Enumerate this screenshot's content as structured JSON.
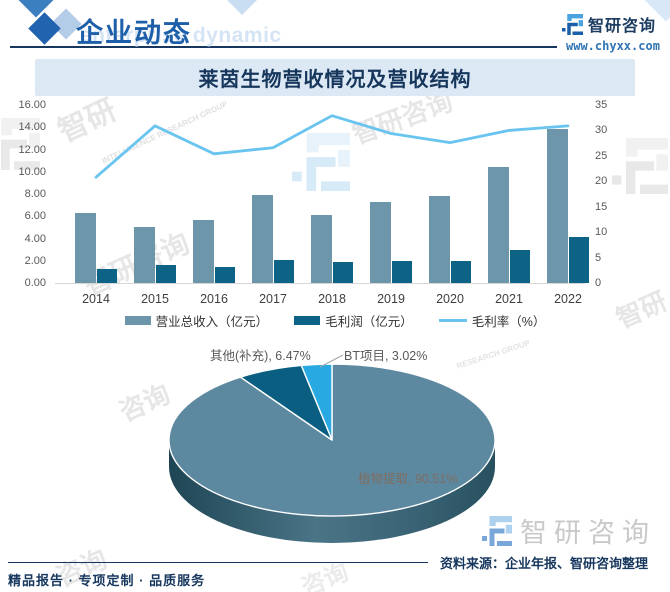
{
  "header": {
    "section_title": "企业动态",
    "section_title_en": "enterprise dynamic",
    "brand": "智研咨询",
    "website": "www.chyxx.com"
  },
  "banner": {
    "title": "莱茵生物营收情况及营收结构"
  },
  "theme": {
    "navy": "#17375e",
    "header_blue": "#1e5fa9",
    "banner_bg": "#dce9f5",
    "revenue_bar": "#6d96ab",
    "profit_bar": "#0c6386",
    "margin_line": "#69c4ef",
    "pie_plant": "#5d89a0",
    "pie_other": "#0a5e81",
    "pie_bt": "#29a9e1"
  },
  "chart_data": [
    {
      "type": "bar",
      "subtype": "combo-bar-line",
      "title": "莱茵生物营收情况及营收结构",
      "categories": [
        "2014",
        "2015",
        "2016",
        "2017",
        "2018",
        "2019",
        "2020",
        "2021",
        "2022"
      ],
      "series": [
        {
          "name": "营业总收入（亿元）",
          "type": "bar",
          "axis": "left",
          "color": "#6d96ab",
          "values": [
            6.3,
            5.0,
            5.7,
            7.9,
            6.1,
            7.3,
            7.8,
            10.4,
            13.8
          ]
        },
        {
          "name": "毛利润（亿元）",
          "type": "bar",
          "axis": "left",
          "color": "#0c6386",
          "values": [
            1.3,
            1.6,
            1.4,
            2.1,
            1.9,
            2.0,
            2.0,
            3.0,
            4.1
          ]
        },
        {
          "name": "毛利率（%）",
          "type": "line",
          "axis": "right",
          "color": "#69c4ef",
          "values": [
            20.8,
            30.9,
            25.4,
            26.6,
            32.9,
            29.4,
            27.6,
            30.0,
            30.9
          ]
        }
      ],
      "left_axis": {
        "min": 0,
        "max": 16,
        "step": 2,
        "labels": [
          "16.00",
          "14.00",
          "12.00",
          "10.00",
          "8.00",
          "6.00",
          "4.00",
          "2.00",
          "0.00"
        ]
      },
      "right_axis": {
        "min": 0,
        "max": 35,
        "step": 5,
        "labels": [
          "35",
          "30",
          "25",
          "20",
          "15",
          "10",
          "5",
          "0"
        ]
      },
      "grid": false,
      "legend_position": "bottom"
    },
    {
      "type": "pie",
      "style": "3d",
      "labels": [
        "植物提取",
        "其他(补充)",
        "BT项目"
      ],
      "values": [
        90.51,
        6.47,
        3.02
      ],
      "colors": [
        "#5d89a0",
        "#0a5e81",
        "#29a9e1"
      ],
      "label_texts": [
        "植物提取, 90.51%",
        "其他(补充), 6.47%",
        "BT项目, 3.02%"
      ]
    }
  ],
  "source": {
    "text": "资料来源：企业年报、智研咨询整理"
  },
  "footer": {
    "tagline": "精品报告 · 专项定制 · 品质服务"
  },
  "brand_watermark": {
    "text": "智研咨询"
  },
  "watermarks": {
    "zhi": "智研",
    "zixun": "咨询",
    "full": "智研咨询",
    "en": "INTELLIGENCE RESEARCH GROUP",
    "en2": "RESEARCH GROUP"
  }
}
